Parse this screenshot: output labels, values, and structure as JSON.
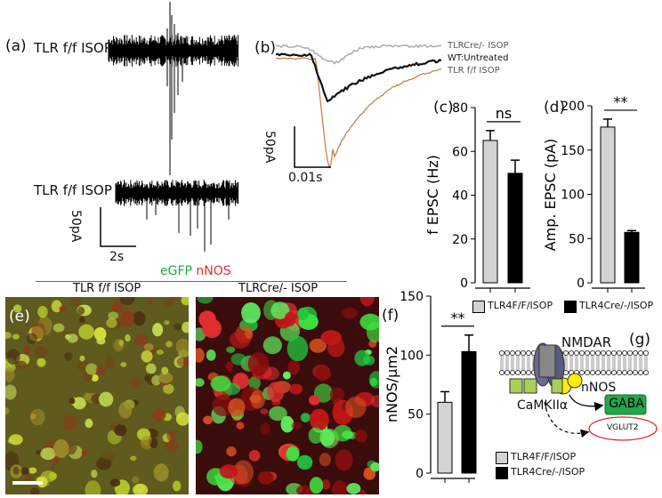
{
  "panel_labels": {
    "a": "(a)",
    "b": "(b)",
    "c": "(c)",
    "d": "(d)",
    "e": "(e)",
    "f": "(f)",
    "g": "(g)"
  },
  "panel_a": {
    "trace1_label": "TLR f/f ISOP",
    "trace2_label": "TLR f/f ISOP",
    "scale_y": "50pA",
    "scale_x": "2s"
  },
  "panel_b": {
    "legend": [
      {
        "text": "TLRCre/- ISOP",
        "color": "#b0b0b0"
      },
      {
        "text": "WT:Untreated",
        "color": "#111111"
      },
      {
        "text": "TLR f/f ISOP",
        "color": "#c8773a"
      }
    ],
    "scale_y": "50pA",
    "scale_x": "0.01s"
  },
  "panel_e": {
    "stain_green": "eGFP",
    "stain_red": "nNOS",
    "left_title": "TLR f/f ISOP",
    "right_title": "TLRCre/- ISOP"
  },
  "panel_g": {
    "nmdar": "NMDAR",
    "nnos": "nNOS",
    "camk": "CaMKIIα",
    "gaba": "GABA",
    "vglut": "VGLUT2"
  },
  "legend_cd": {
    "item1": "TLR4F/F/ISOP",
    "item2": "TLR4Cre/-/ISOP"
  },
  "legend_f": {
    "item1": "TLR4F/F/ISOP",
    "item2": "TLR4Cre/-/ISOP"
  },
  "colors": {
    "grey_bar": "#d3d3d3",
    "black_bar": "#000000",
    "green": "#19a84a",
    "red": "#e03030",
    "orange_trace": "#c8773a"
  },
  "chart_data": [
    {
      "id": "c",
      "type": "bar",
      "categories": [
        "TLR4F/F/ISOP",
        "TLR4Cre/-/ISOP"
      ],
      "values": [
        65,
        50
      ],
      "errors": [
        4.5,
        6
      ],
      "ylabel": "f EPSC (Hz)",
      "ylim": [
        0,
        80
      ],
      "yticks": [
        0,
        20,
        40,
        60,
        80
      ],
      "significance": "ns"
    },
    {
      "id": "d",
      "type": "bar",
      "categories": [
        "TLR4F/F/ISOP",
        "TLR4Cre/-/ISOP"
      ],
      "values": [
        176,
        57
      ],
      "errors": [
        9,
        2
      ],
      "ylabel": "Amp. EPSC (pA)",
      "ylim": [
        0,
        200
      ],
      "yticks": [
        0,
        50,
        100,
        150,
        200
      ],
      "significance": "**"
    },
    {
      "id": "f",
      "type": "bar",
      "categories": [
        "TLR4F/F/ISOP",
        "TLR4Cre/-/ISOP"
      ],
      "values": [
        60,
        103
      ],
      "errors": [
        9,
        14
      ],
      "ylabel": "nNOS/μm2",
      "ylim": [
        0,
        150
      ],
      "yticks": [
        0,
        50,
        100,
        150
      ],
      "significance": "**"
    }
  ]
}
